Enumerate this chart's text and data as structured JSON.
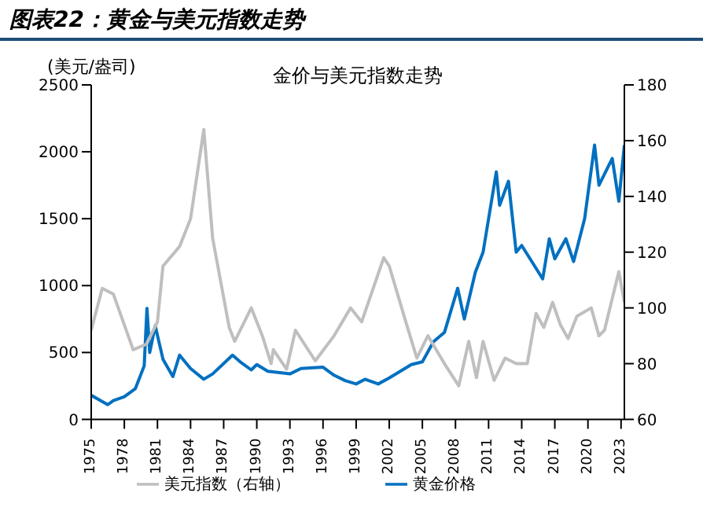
{
  "chart_data": {
    "type": "line",
    "title": "图表22：黄金与美元指数走势",
    "subtitle": "金价与美元指数走势",
    "ylabel": "(美元/盎司)",
    "xlim": [
      1975,
      2023.3
    ],
    "xticks": [
      1975,
      1978,
      1981,
      1984,
      1987,
      1990,
      1993,
      1996,
      1999,
      2002,
      2005,
      2008,
      2011,
      2014,
      2017,
      2020,
      2023
    ],
    "ylim": [
      0,
      2500
    ],
    "yticks": [
      0,
      500,
      1000,
      1500,
      2000,
      2500
    ],
    "y2lim": [
      60,
      180
    ],
    "y2ticks": [
      60,
      80,
      100,
      120,
      140,
      160,
      180
    ],
    "legend": "bottom",
    "marker": "none",
    "line_style": "solid",
    "series": [
      {
        "name": "黄金价格",
        "color": "#0070c0",
        "axis": "y",
        "x": [
          1975,
          1976.5,
          1977,
          1978,
          1979,
          1979.8,
          1980.05,
          1980.3,
          1980.8,
          1981.5,
          1982.4,
          1983,
          1984,
          1985.2,
          1986,
          1987.8,
          1988.5,
          1989.5,
          1990,
          1991,
          1993,
          1994,
          1996,
          1997,
          1998,
          1999,
          1999.8,
          2001,
          2002,
          2003,
          2004,
          2005,
          2006,
          2007,
          2008.2,
          2008.8,
          2009.8,
          2010.5,
          2011.7,
          2012,
          2012.8,
          2013.5,
          2014,
          2015.9,
          2016.5,
          2017,
          2018,
          2018.7,
          2019.7,
          2020.6,
          2021,
          2022.2,
          2022.8,
          2023.3
        ],
        "values": [
          180,
          110,
          140,
          170,
          230,
          400,
          830,
          500,
          700,
          450,
          320,
          480,
          380,
          300,
          340,
          480,
          430,
          370,
          410,
          360,
          340,
          380,
          390,
          330,
          290,
          265,
          300,
          265,
          310,
          360,
          410,
          430,
          580,
          650,
          980,
          750,
          1100,
          1250,
          1850,
          1600,
          1780,
          1250,
          1300,
          1050,
          1350,
          1200,
          1350,
          1180,
          1500,
          2050,
          1750,
          1950,
          1630,
          2050
        ]
      },
      {
        "name": "美元指数（右轴）",
        "color": "#bfbfbf",
        "axis": "y2",
        "x": [
          1975,
          1976,
          1977,
          1978.8,
          1980,
          1981,
          1981.5,
          1983,
          1984,
          1985.2,
          1986,
          1987.5,
          1988,
          1989.5,
          1990.5,
          1991.3,
          1991.5,
          1992.7,
          1993.5,
          1995.3,
          1997,
          1998.5,
          1999.5,
          2001.5,
          2002,
          2003.5,
          2004.5,
          2005.5,
          2007,
          2008.3,
          2009.2,
          2009.9,
          2010.5,
          2011.5,
          2012.5,
          2013.5,
          2014.5,
          2015.3,
          2016,
          2016.8,
          2017.5,
          2018.2,
          2019,
          2020.3,
          2021,
          2021.5,
          2022.8,
          2023.3
        ],
        "values": [
          92,
          107,
          105,
          85,
          87,
          95,
          115,
          122,
          132,
          164,
          125,
          93,
          88,
          100,
          90,
          80,
          85,
          78,
          92,
          81,
          90,
          100,
          95,
          118,
          115,
          95,
          82,
          90,
          80,
          72,
          88,
          75,
          88,
          74,
          82,
          80,
          80,
          98,
          93,
          102,
          94,
          89,
          97,
          100,
          90,
          92,
          113,
          102
        ]
      }
    ]
  }
}
